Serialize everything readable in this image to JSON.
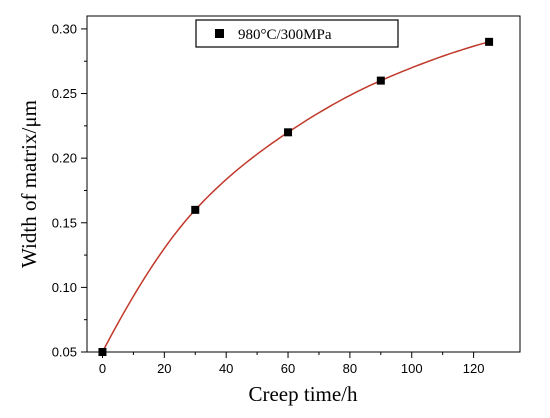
{
  "chart_data": {
    "type": "scatter",
    "xlabel": "Creep time/h",
    "ylabel": "Width of matrix/μm",
    "xlim": [
      -5,
      135
    ],
    "ylim": [
      0.05,
      0.31
    ],
    "x_ticks": [
      0,
      20,
      40,
      60,
      80,
      100,
      120
    ],
    "y_ticks": [
      0.05,
      0.1,
      0.15,
      0.2,
      0.25,
      0.3
    ],
    "x_tick_labels": [
      "0",
      "20",
      "40",
      "60",
      "80",
      "100",
      "120"
    ],
    "y_tick_labels": [
      "0.05",
      "0.10",
      "0.15",
      "0.20",
      "0.25",
      "0.30"
    ],
    "grid": false,
    "legend_position": "top-center",
    "series": [
      {
        "name": "980°C/300MPa",
        "marker": "square",
        "color": "#000000",
        "x": [
          0,
          30,
          60,
          90,
          125
        ],
        "y": [
          0.05,
          0.16,
          0.22,
          0.26,
          0.29
        ]
      }
    ],
    "fit_curve": {
      "color": "#c0392b",
      "x_range": [
        0,
        125
      ]
    }
  }
}
